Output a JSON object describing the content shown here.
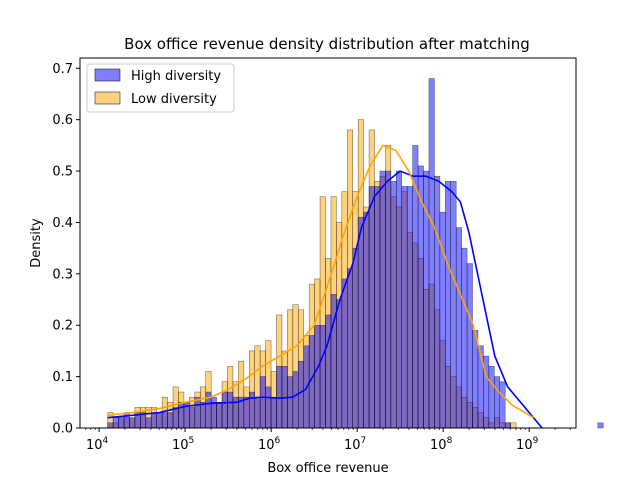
{
  "chart_data": {
    "type": "histogram",
    "title": "Box office revenue density distribution after matching",
    "xlabel": "Box office revenue",
    "ylabel": "Density",
    "xscale": "log",
    "xlim": [
      6000,
      3500000000
    ],
    "ylim": [
      0,
      0.72
    ],
    "yticks": [
      0.0,
      0.1,
      0.2,
      0.3,
      0.4,
      0.5,
      0.6,
      0.7
    ],
    "ytick_labels": [
      "0.0",
      "0.1",
      "0.2",
      "0.3",
      "0.4",
      "0.5",
      "0.6",
      "0.7"
    ],
    "xticks": [
      10000,
      100000,
      1000000,
      10000000,
      100000000,
      1000000000
    ],
    "xtick_labels": [
      {
        "base": "10",
        "exp": "4"
      },
      {
        "base": "10",
        "exp": "5"
      },
      {
        "base": "10",
        "exp": "6"
      },
      {
        "base": "10",
        "exp": "7"
      },
      {
        "base": "10",
        "exp": "8"
      },
      {
        "base": "10",
        "exp": "9"
      }
    ],
    "legend_position": "upper-left",
    "bin_start_log10": 4.1,
    "bin_width_log10": 0.0633,
    "series": [
      {
        "name": "High diversity",
        "color": "#0000ff",
        "fill_opacity": 0.5,
        "kde_color": "#0000ff",
        "densities": [
          0.01,
          0.02,
          0.02,
          0.03,
          0.02,
          0.03,
          0.03,
          0.02,
          0.03,
          0.03,
          0.03,
          0.03,
          0.04,
          0.05,
          0.05,
          0.04,
          0.06,
          0.05,
          0.07,
          0.06,
          0.05,
          0.07,
          0.07,
          0.06,
          0.06,
          0.06,
          0.07,
          0.06,
          0.1,
          0.08,
          0.06,
          0.12,
          0.12,
          0.1,
          0.11,
          0.13,
          0.16,
          0.18,
          0.2,
          0.2,
          0.22,
          0.26,
          0.25,
          0.29,
          0.31,
          0.35,
          0.41,
          0.42,
          0.47,
          0.47,
          0.5,
          0.5,
          0.48,
          0.5,
          0.47,
          0.47,
          0.55,
          0.51,
          0.5,
          0.68,
          0.49,
          0.42,
          0.48,
          0.48,
          0.39,
          0.35,
          0.32,
          0.19,
          0.16,
          0.14,
          0.12,
          0.1,
          0.09,
          0.01,
          0.0,
          0.0,
          0.0,
          0.0,
          0.0,
          0.0,
          0.0,
          0.0,
          0.0,
          0.0,
          0.0,
          0.0,
          0.0,
          0.0,
          0.0,
          0.0,
          0.01
        ],
        "kde": [
          [
            4.1,
            0.02
          ],
          [
            4.4,
            0.025
          ],
          [
            4.7,
            0.03
          ],
          [
            5.0,
            0.042
          ],
          [
            5.3,
            0.048
          ],
          [
            5.6,
            0.05
          ],
          [
            5.75,
            0.058
          ],
          [
            5.9,
            0.06
          ],
          [
            6.1,
            0.058
          ],
          [
            6.25,
            0.06
          ],
          [
            6.4,
            0.075
          ],
          [
            6.55,
            0.12
          ],
          [
            6.65,
            0.16
          ],
          [
            6.8,
            0.25
          ],
          [
            6.95,
            0.32
          ],
          [
            7.05,
            0.39
          ],
          [
            7.2,
            0.45
          ],
          [
            7.35,
            0.48
          ],
          [
            7.5,
            0.5
          ],
          [
            7.65,
            0.49
          ],
          [
            7.8,
            0.49
          ],
          [
            7.95,
            0.48
          ],
          [
            8.1,
            0.46
          ],
          [
            8.2,
            0.44
          ],
          [
            8.3,
            0.38
          ],
          [
            8.45,
            0.26
          ],
          [
            8.6,
            0.14
          ],
          [
            8.75,
            0.08
          ],
          [
            8.85,
            0.06
          ],
          [
            8.95,
            0.04
          ],
          [
            9.05,
            0.02
          ],
          [
            9.15,
            0.0
          ]
        ]
      },
      {
        "name": "Low diversity",
        "color": "#ffa500",
        "fill_opacity": 0.5,
        "kde_color": "#ffa500",
        "densities": [
          0.03,
          0.01,
          0.02,
          0.02,
          0.02,
          0.04,
          0.04,
          0.04,
          0.04,
          0.03,
          0.06,
          0.05,
          0.08,
          0.07,
          0.05,
          0.06,
          0.07,
          0.08,
          0.11,
          0.05,
          0.05,
          0.09,
          0.12,
          0.09,
          0.13,
          0.08,
          0.15,
          0.16,
          0.15,
          0.17,
          0.11,
          0.22,
          0.15,
          0.23,
          0.24,
          0.23,
          0.18,
          0.28,
          0.29,
          0.45,
          0.33,
          0.45,
          0.4,
          0.46,
          0.58,
          0.46,
          0.6,
          0.43,
          0.58,
          0.48,
          0.49,
          0.55,
          0.45,
          0.43,
          0.46,
          0.38,
          0.36,
          0.33,
          0.27,
          0.28,
          0.23,
          0.17,
          0.12,
          0.1,
          0.08,
          0.06,
          0.05,
          0.04,
          0.03,
          0.02,
          0.01,
          0.02,
          0.01,
          0.01,
          0.01
        ],
        "kde": [
          [
            4.1,
            0.025
          ],
          [
            4.4,
            0.03
          ],
          [
            4.7,
            0.038
          ],
          [
            5.0,
            0.05
          ],
          [
            5.3,
            0.06
          ],
          [
            5.5,
            0.075
          ],
          [
            5.7,
            0.095
          ],
          [
            5.9,
            0.12
          ],
          [
            6.1,
            0.14
          ],
          [
            6.3,
            0.16
          ],
          [
            6.5,
            0.2
          ],
          [
            6.7,
            0.3
          ],
          [
            6.85,
            0.38
          ],
          [
            7.0,
            0.45
          ],
          [
            7.15,
            0.51
          ],
          [
            7.3,
            0.55
          ],
          [
            7.45,
            0.54
          ],
          [
            7.6,
            0.5
          ],
          [
            7.75,
            0.44
          ],
          [
            7.9,
            0.39
          ],
          [
            8.05,
            0.32
          ],
          [
            8.2,
            0.26
          ],
          [
            8.35,
            0.2
          ],
          [
            8.5,
            0.1
          ],
          [
            8.65,
            0.07
          ],
          [
            8.8,
            0.045
          ],
          [
            8.95,
            0.03
          ],
          [
            9.05,
            0.02
          ]
        ]
      }
    ]
  }
}
